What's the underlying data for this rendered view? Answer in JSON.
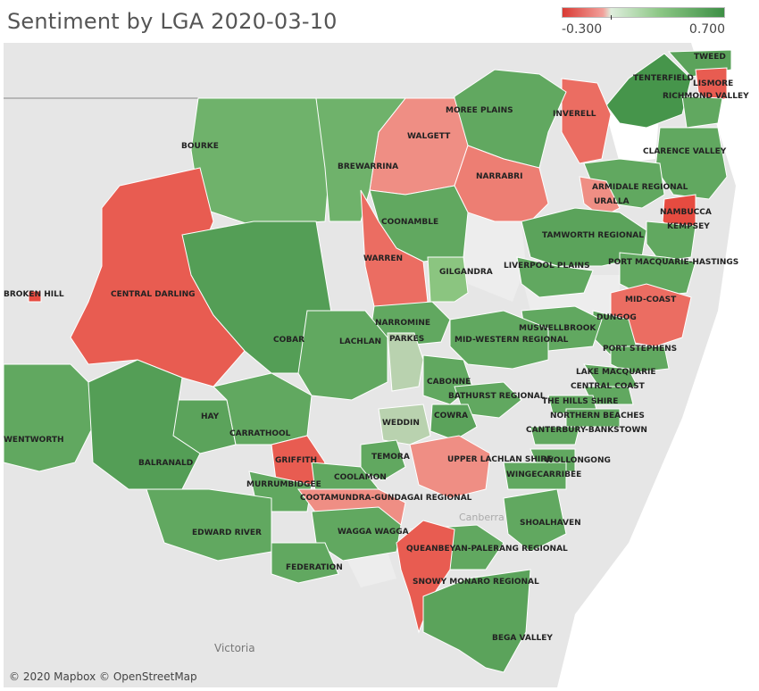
{
  "title": "Sentiment by LGA 2020-03-10",
  "legend": {
    "min_label": "-0.300",
    "max_label": "0.700",
    "min": -0.3,
    "max": 0.7
  },
  "colors": {
    "negative": "#e8574b",
    "pale_negative": "#f5a193",
    "neutral": "#cfd6c6",
    "positive": "#78b96c",
    "strong_positive": "#4d9e4d",
    "water": "#ffffff",
    "land": "#e6e6e6"
  },
  "attribution": "© 2020 Mapbox © OpenStreetMap",
  "basemap_labels": {
    "victoria": "Victoria",
    "canberra": "Canberra"
  },
  "regions": [
    {
      "name": "TWEED",
      "value": 0.5
    },
    {
      "name": "LISMORE",
      "value": -0.25
    },
    {
      "name": "TENTERFIELD",
      "value": 0.65
    },
    {
      "name": "RICHMOND VALLEY",
      "value": 0.45
    },
    {
      "name": "INVERELL",
      "value": -0.2
    },
    {
      "name": "MOREE PLAINS",
      "value": 0.45
    },
    {
      "name": "WALGETT",
      "value": -0.1
    },
    {
      "name": "CLARENCE VALLEY",
      "value": 0.45
    },
    {
      "name": "BOURKE",
      "value": 0.35
    },
    {
      "name": "BREWARRINA",
      "value": 0.35
    },
    {
      "name": "NARRABRI",
      "value": -0.15
    },
    {
      "name": "ARMIDALE REGIONAL",
      "value": 0.45
    },
    {
      "name": "URALLA",
      "value": -0.1
    },
    {
      "name": "NAMBUCCA",
      "value": -0.3
    },
    {
      "name": "KEMPSEY",
      "value": 0.45
    },
    {
      "name": "COONAMBLE",
      "value": 0.45
    },
    {
      "name": "TAMWORTH REGIONAL",
      "value": 0.5
    },
    {
      "name": "LIVERPOOL PLAINS",
      "value": 0.45
    },
    {
      "name": "PORT MACQUARIE-HASTINGS",
      "value": 0.45
    },
    {
      "name": "WARREN",
      "value": -0.2
    },
    {
      "name": "GILGANDRA",
      "value": 0.15
    },
    {
      "name": "BROKEN HILL",
      "value": -0.3
    },
    {
      "name": "CENTRAL DARLING",
      "value": -0.25
    },
    {
      "name": "MID-COAST",
      "value": -0.2
    },
    {
      "name": "DUNGOG",
      "value": 0.45
    },
    {
      "name": "NARROMINE",
      "value": 0.45
    },
    {
      "name": "MUSWELLBROOK",
      "value": 0.45
    },
    {
      "name": "COBAR",
      "value": 0.55
    },
    {
      "name": "LACHLAN",
      "value": 0.45
    },
    {
      "name": "PARKES",
      "value": 0.05
    },
    {
      "name": "MID-WESTERN REGIONAL",
      "value": 0.45
    },
    {
      "name": "PORT STEPHENS",
      "value": 0.45
    },
    {
      "name": "LAKE MACQUARIE",
      "value": 0.45
    },
    {
      "name": "CABONNE",
      "value": 0.45
    },
    {
      "name": "CENTRAL COAST",
      "value": 0.45
    },
    {
      "name": "BATHURST REGIONAL",
      "value": 0.45
    },
    {
      "name": "THE HILLS SHIRE",
      "value": 0.45
    },
    {
      "name": "NORTHERN BEACHES",
      "value": 0.45
    },
    {
      "name": "WENTWORTH",
      "value": 0.45
    },
    {
      "name": "COWRA",
      "value": 0.5
    },
    {
      "name": "WEDDIN",
      "value": 0.05
    },
    {
      "name": "CANTERBURY-BANKSTOWN",
      "value": 0.45
    },
    {
      "name": "HAY",
      "value": 0.5
    },
    {
      "name": "CARRATHOOL",
      "value": 0.45
    },
    {
      "name": "BALRANALD",
      "value": 0.55
    },
    {
      "name": "GRIFFITH",
      "value": -0.25
    },
    {
      "name": "TEMORA",
      "value": 0.45
    },
    {
      "name": "UPPER LACHLAN SHIRE",
      "value": -0.1
    },
    {
      "name": "WOLLONGONG",
      "value": 0.45
    },
    {
      "name": "MURRUMBIDGEE",
      "value": 0.45
    },
    {
      "name": "COOLAMON",
      "value": 0.45
    },
    {
      "name": "WINGECARRIBEE",
      "value": 0.45
    },
    {
      "name": "COOTAMUNDRA-GUNDAGAI REGIONAL",
      "value": -0.1
    },
    {
      "name": "SHOALHAVEN",
      "value": 0.45
    },
    {
      "name": "EDWARD RIVER",
      "value": 0.45
    },
    {
      "name": "WAGGA WAGGA",
      "value": 0.45
    },
    {
      "name": "QUEANBEYAN-PALERANG REGIONAL",
      "value": 0.45
    },
    {
      "name": "FEDERATION",
      "value": 0.45
    },
    {
      "name": "SNOWY MONARO REGIONAL",
      "value": -0.25
    },
    {
      "name": "BEGA VALLEY",
      "value": 0.5
    }
  ]
}
